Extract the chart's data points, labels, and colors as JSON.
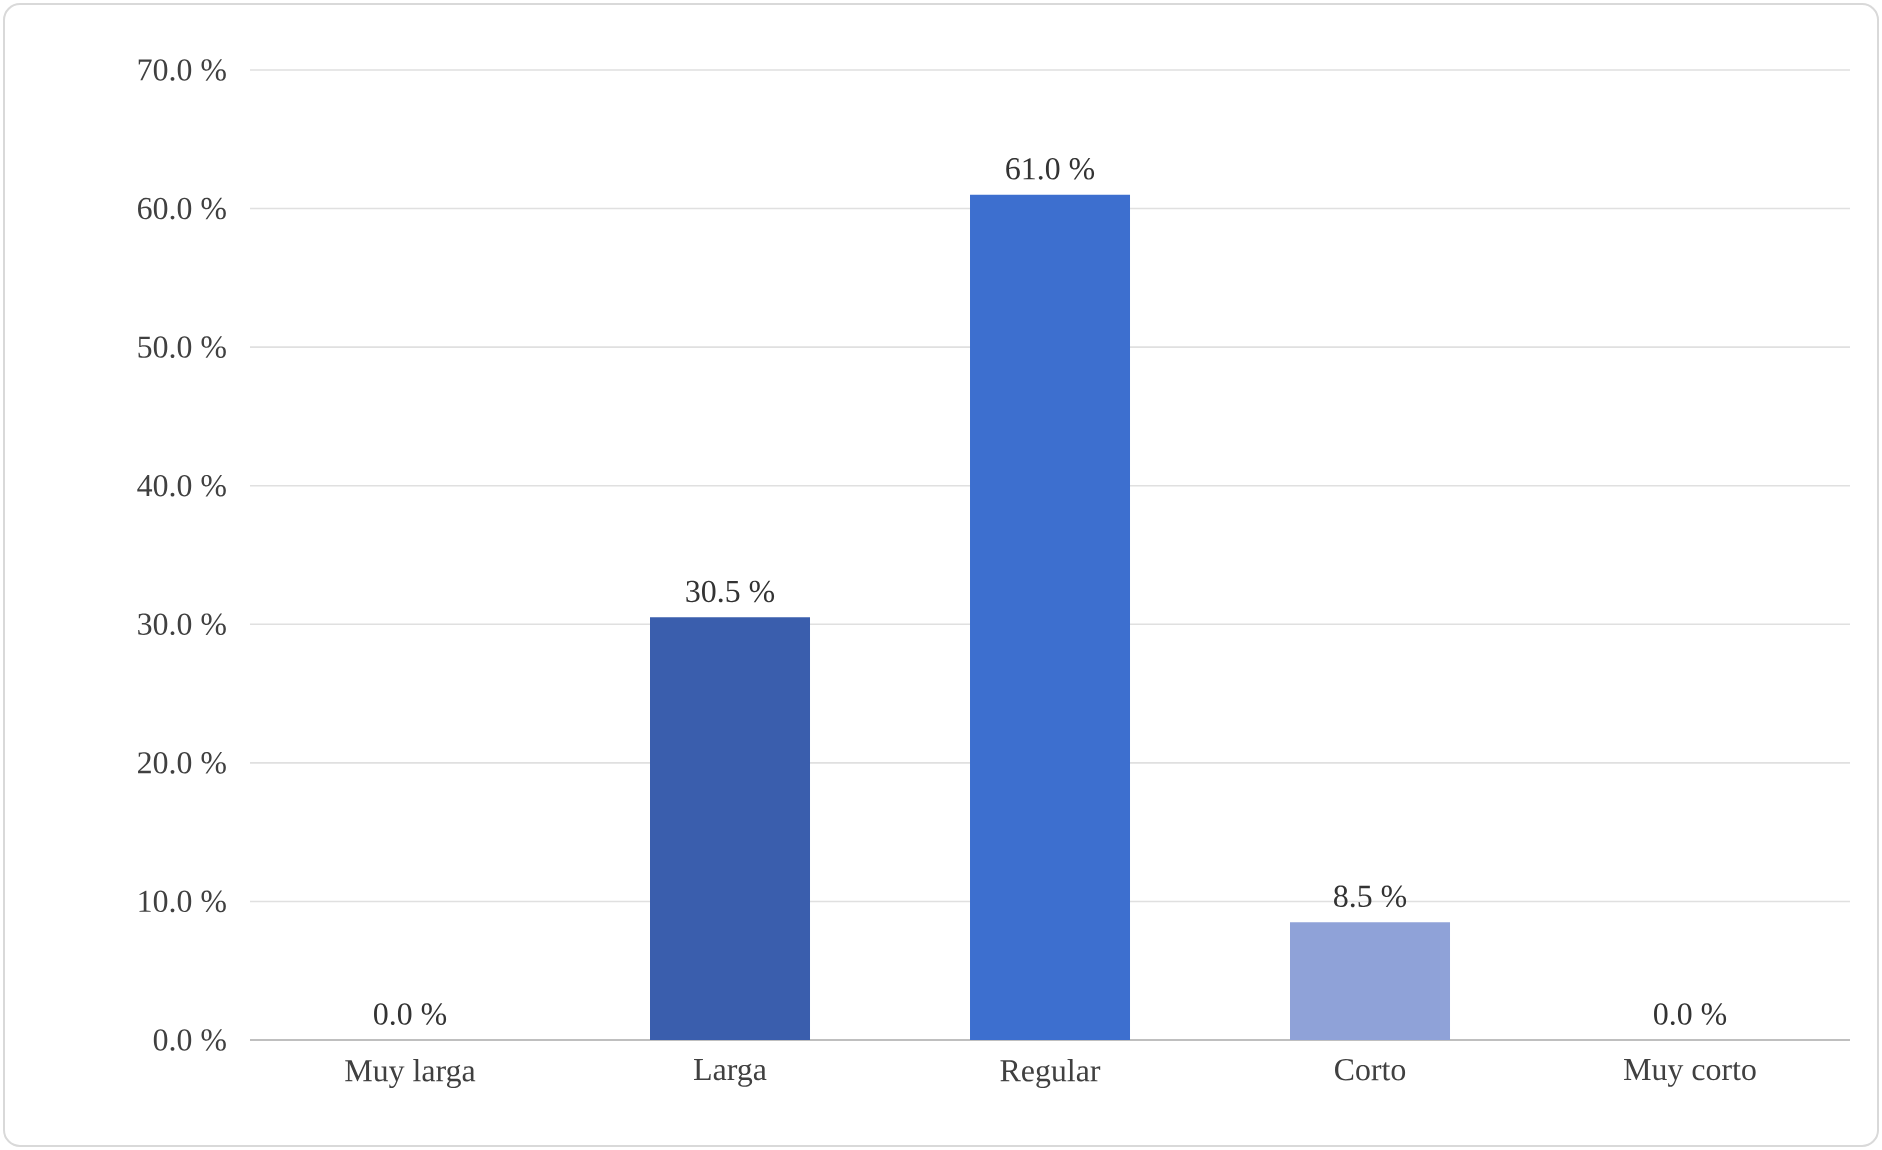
{
  "chart_data": {
    "type": "bar",
    "categories": [
      "Muy larga",
      "Larga",
      "Regular",
      "Corto",
      "Muy corto"
    ],
    "values": [
      0.0,
      30.5,
      61.0,
      8.5,
      0.0
    ],
    "colors": [
      "#3b64c0",
      "#3a5ead",
      "#3d6fcf",
      "#8fa2d8",
      "#3b64c0"
    ],
    "value_labels": [
      "0.0 %",
      "30.5 %",
      "61.0 %",
      "8.5 %",
      "0.0 %"
    ],
    "ylim": [
      0,
      70
    ],
    "yticks": [
      {
        "value": 0,
        "label": "0.0 %"
      },
      {
        "value": 10,
        "label": "10.0 %"
      },
      {
        "value": 20,
        "label": "20.0 %"
      },
      {
        "value": 30,
        "label": "30.0 %"
      },
      {
        "value": 40,
        "label": "40.0 %"
      },
      {
        "value": 50,
        "label": "50.0 %"
      },
      {
        "value": 60,
        "label": "60.0 %"
      },
      {
        "value": 70,
        "label": "70.0 %"
      }
    ],
    "grid": "y"
  }
}
